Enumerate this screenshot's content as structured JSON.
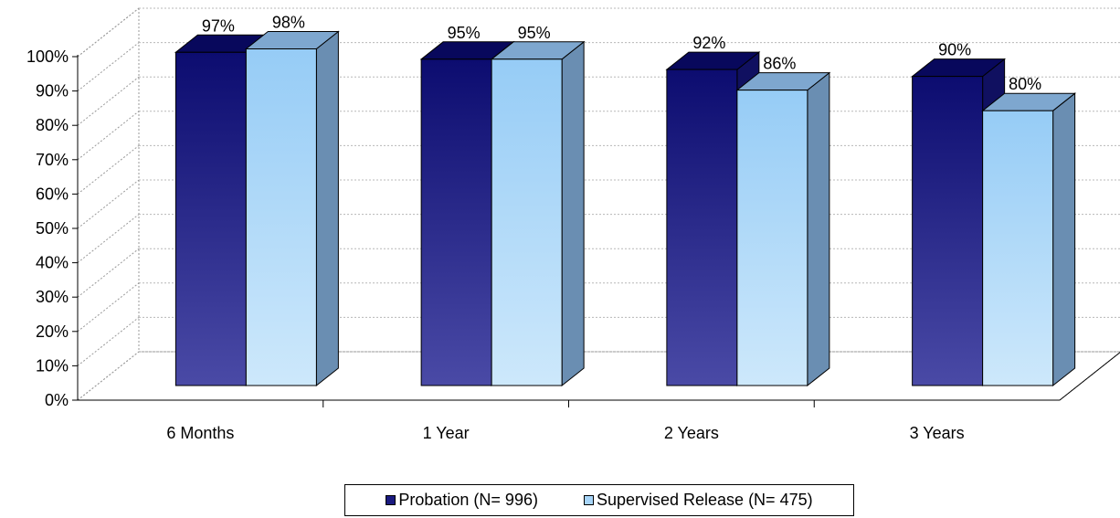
{
  "chart_data": {
    "type": "bar",
    "title": "",
    "xlabel": "",
    "ylabel": "",
    "ylim": [
      0,
      100
    ],
    "yticks": [
      "0%",
      "10%",
      "20%",
      "30%",
      "40%",
      "50%",
      "60%",
      "70%",
      "80%",
      "90%",
      "100%"
    ],
    "categories": [
      "6 Months",
      "1 Year",
      "2 Years",
      "3 Years"
    ],
    "series": [
      {
        "name": "Probation (N= 996)",
        "values": [
          97,
          95,
          92,
          90
        ],
        "labels": [
          "97%",
          "95%",
          "92%",
          "90%"
        ],
        "color": "#1a1a80"
      },
      {
        "name": "Supervised Release (N= 475)",
        "values": [
          98,
          95,
          86,
          80
        ],
        "labels": [
          "98%",
          "95%",
          "86%",
          "80%"
        ],
        "color": "#a6d4f8"
      }
    ],
    "legend_position": "bottom",
    "grid": true,
    "style": "3d-clustered-bar"
  }
}
